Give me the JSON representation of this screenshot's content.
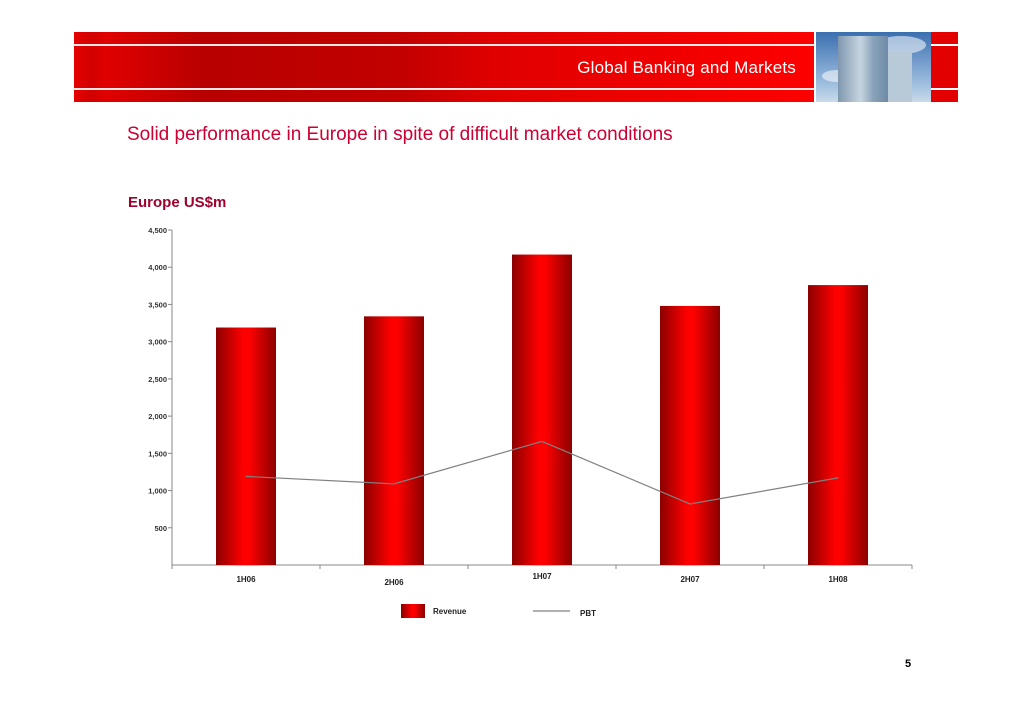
{
  "header": {
    "title": "Global Banking and Markets"
  },
  "headline": "Solid performance in Europe in spite of difficult market conditions",
  "chart_title": "Europe US$m",
  "page_number": "5",
  "colors": {
    "bar": "#e00000",
    "bar_dark": "#8b0000",
    "line": "#808080",
    "headline": "#cc0033",
    "banner": "#e30000"
  },
  "chart_data": {
    "type": "bar",
    "title": "Europe US$m",
    "categories": [
      "1H06",
      "2H06",
      "1H07",
      "2H07",
      "1H08"
    ],
    "series": [
      {
        "name": "Revenue",
        "type": "bar",
        "values": [
          3190,
          3340,
          4170,
          3480,
          3760
        ]
      },
      {
        "name": "PBT",
        "type": "line",
        "values": [
          1190,
          1090,
          1660,
          820,
          1170
        ]
      }
    ],
    "yticks": [
      "4,500",
      "4,000",
      "3,500",
      "3,000",
      "2,500",
      "2,000",
      "1,500",
      "1,000",
      "500"
    ],
    "ytick_values": [
      4500,
      4000,
      3500,
      3000,
      2500,
      2000,
      1500,
      1000,
      500
    ],
    "ylim": [
      0,
      4500
    ],
    "grid": false,
    "legend_position": "bottom"
  }
}
